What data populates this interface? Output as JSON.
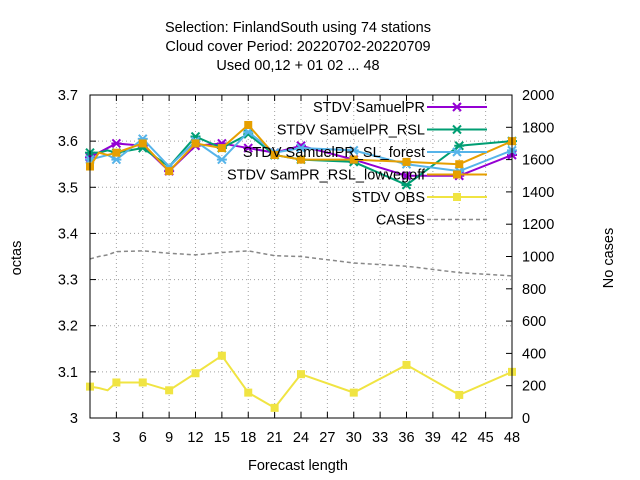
{
  "chart_data": {
    "type": "line",
    "title_lines": [
      "Selection: FinlandSouth using    74 stations",
      "Cloud cover   Period: 20220702-20220709",
      "Used  00,12  + 01 02 ... 48"
    ],
    "xlabel": "Forecast length",
    "ylabel_left": "octas",
    "ylabel_right": "No cases",
    "xlim": [
      0,
      48
    ],
    "ylim_left": [
      3.0,
      3.7
    ],
    "ylim_right": [
      0,
      2000
    ],
    "x_ticks": [
      3,
      6,
      9,
      12,
      15,
      18,
      21,
      24,
      27,
      30,
      33,
      36,
      39,
      42,
      45,
      48
    ],
    "y_ticks_left": [
      "3",
      "3.1",
      "3.2",
      "3.3",
      "3.4",
      "3.5",
      "3.6",
      "3.7"
    ],
    "y_ticks_right": [
      "0",
      "200",
      "400",
      "600",
      "800",
      "1000",
      "1200",
      "1400",
      "1600",
      "1800",
      "2000"
    ],
    "legend_position": "top-right",
    "series": [
      {
        "name": "STDV SamuelPR",
        "color": "#9400d3",
        "marker": "x-star",
        "axis": "left",
        "x": [
          0,
          1,
          2,
          3,
          6,
          9,
          12,
          15,
          18,
          21,
          24,
          30,
          36,
          42,
          48
        ],
        "y": [
          3.565,
          3.575,
          3.585,
          3.595,
          3.59,
          3.535,
          3.59,
          3.595,
          3.585,
          3.575,
          3.59,
          3.56,
          3.525,
          3.525,
          3.57
        ]
      },
      {
        "name": "STDV SamuelPR_RSL",
        "color": "#009e73",
        "marker": "x-star",
        "axis": "left",
        "x": [
          0,
          1,
          2,
          3,
          6,
          9,
          12,
          15,
          18,
          21,
          24,
          30,
          36,
          42,
          48
        ],
        "y": [
          3.575,
          3.575,
          3.58,
          3.575,
          3.585,
          3.545,
          3.61,
          3.585,
          3.615,
          3.57,
          3.56,
          3.555,
          3.505,
          3.59,
          3.6
        ]
      },
      {
        "name": "STDV SamuelPR_SL_forest",
        "color": "#56b4e9",
        "marker": "x-star",
        "axis": "left",
        "x": [
          0,
          1,
          2,
          3,
          6,
          9,
          12,
          15,
          18,
          21,
          24,
          30,
          36,
          42,
          48
        ],
        "y": [
          3.56,
          3.565,
          3.57,
          3.56,
          3.605,
          3.545,
          3.6,
          3.56,
          3.62,
          3.575,
          3.585,
          3.58,
          3.55,
          3.535,
          3.58
        ]
      },
      {
        "name": "STDV SamPR_RSL_lowvegoff",
        "color": "#e69f00",
        "marker": "square",
        "axis": "left",
        "x": [
          0,
          1,
          2,
          3,
          6,
          9,
          12,
          15,
          18,
          21,
          24,
          30,
          36,
          42,
          48
        ],
        "y": [
          3.545,
          3.575,
          3.57,
          3.575,
          3.595,
          3.535,
          3.595,
          3.585,
          3.635,
          3.57,
          3.56,
          3.56,
          3.555,
          3.55,
          3.6
        ]
      },
      {
        "name": "STDV OBS",
        "color": "#f0e442",
        "marker": "square",
        "axis": "left",
        "x": [
          0,
          1,
          2,
          3,
          6,
          9,
          12,
          15,
          18,
          21,
          24,
          30,
          36,
          42,
          48
        ],
        "y": [
          3.068,
          3.065,
          3.06,
          3.077,
          3.077,
          3.06,
          3.097,
          3.135,
          3.055,
          3.022,
          3.095,
          3.055,
          3.115,
          3.05,
          3.1
        ]
      },
      {
        "name": "CASES",
        "color": "#888888",
        "marker": "none",
        "dashed": true,
        "axis": "right",
        "x": [
          0,
          1,
          2,
          3,
          6,
          9,
          12,
          15,
          18,
          21,
          24,
          30,
          36,
          42,
          48
        ],
        "y": [
          985,
          1000,
          1010,
          1030,
          1035,
          1020,
          1010,
          1025,
          1035,
          1005,
          1000,
          960,
          940,
          900,
          880
        ]
      }
    ]
  }
}
